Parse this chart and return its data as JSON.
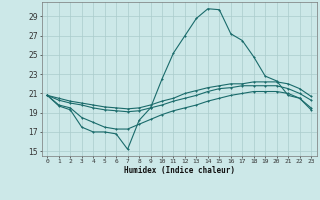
{
  "xlabel": "Humidex (Indice chaleur)",
  "background_color": "#cce8e8",
  "grid_color": "#aacccc",
  "line_color": "#1a6b6b",
  "xlim": [
    -0.5,
    23.5
  ],
  "ylim": [
    14.5,
    30.5
  ],
  "yticks": [
    15,
    17,
    19,
    21,
    23,
    25,
    27,
    29
  ],
  "xtick_labels": [
    "0",
    "1",
    "2",
    "3",
    "4",
    "5",
    "6",
    "7",
    "8",
    "9",
    "10",
    "11",
    "12",
    "13",
    "14",
    "15",
    "16",
    "17",
    "18",
    "19",
    "20",
    "21",
    "22",
    "23"
  ],
  "series": [
    [
      20.8,
      19.7,
      19.3,
      17.5,
      17.0,
      17.0,
      16.8,
      15.2,
      18.2,
      19.5,
      22.5,
      25.2,
      27.0,
      28.8,
      29.8,
      29.7,
      27.2,
      26.5,
      24.8,
      22.8,
      22.3,
      20.8,
      20.5,
      19.3
    ],
    [
      20.8,
      20.5,
      20.2,
      20.0,
      19.8,
      19.6,
      19.5,
      19.4,
      19.5,
      19.8,
      20.2,
      20.5,
      21.0,
      21.3,
      21.6,
      21.8,
      22.0,
      22.0,
      22.2,
      22.2,
      22.2,
      22.0,
      21.5,
      20.7
    ],
    [
      20.8,
      20.3,
      20.0,
      19.8,
      19.5,
      19.3,
      19.2,
      19.1,
      19.2,
      19.5,
      19.8,
      20.2,
      20.5,
      20.8,
      21.2,
      21.5,
      21.6,
      21.8,
      21.8,
      21.8,
      21.8,
      21.5,
      21.0,
      20.3
    ],
    [
      20.8,
      19.8,
      19.5,
      18.5,
      18.0,
      17.5,
      17.3,
      17.3,
      17.8,
      18.3,
      18.8,
      19.2,
      19.5,
      19.8,
      20.2,
      20.5,
      20.8,
      21.0,
      21.2,
      21.2,
      21.2,
      21.0,
      20.5,
      19.5
    ]
  ],
  "markersize": 2.0,
  "linewidth": 0.8
}
